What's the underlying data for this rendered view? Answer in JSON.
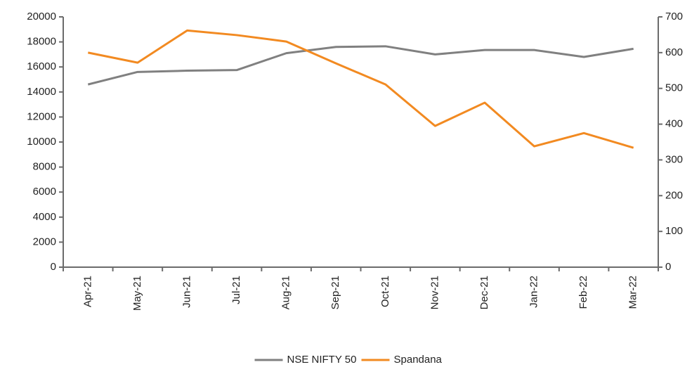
{
  "chart_data": {
    "type": "line",
    "categories": [
      "Apr-21",
      "May-21",
      "Jun-21",
      "Jul-21",
      "Aug-21",
      "Sep-21",
      "Oct-21",
      "Nov-21",
      "Dec-21",
      "Jan-22",
      "Feb-22",
      "Mar-22"
    ],
    "series": [
      {
        "name": "NSE NIFTY 50",
        "color": "#808080",
        "values": [
          14600,
          15600,
          15700,
          15750,
          17100,
          17600,
          17650,
          17000,
          17350,
          17350,
          16800,
          17450
        ]
      },
      {
        "name": "Spandana",
        "color": "#f28a21",
        "axis": "y2",
        "values": [
          600,
          572,
          662,
          649,
          631,
          570,
          511,
          395,
          460,
          338,
          375,
          334
        ]
      }
    ],
    "ylim": [
      0,
      20000
    ],
    "yticks": [
      0,
      2000,
      4000,
      6000,
      8000,
      10000,
      12000,
      14000,
      16000,
      18000,
      20000
    ],
    "y2lim": [
      0,
      700
    ],
    "y2ticks": [
      0,
      100,
      200,
      300,
      400,
      500,
      600,
      700
    ],
    "legend": "bottom"
  }
}
